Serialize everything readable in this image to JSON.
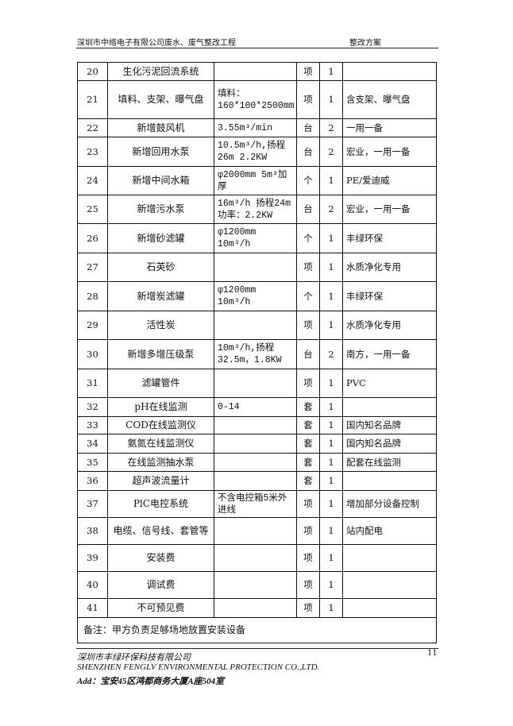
{
  "header": {
    "left": "深圳市中络电子有限公司废水、废气整改工程",
    "right": "整改方案"
  },
  "rows": [
    {
      "no": "20",
      "name": "生化污泥回流系统",
      "spec": "",
      "unit": "项",
      "qty": "1",
      "remark": ""
    },
    {
      "no": "21",
      "name": "填料、支架、曝气盘",
      "spec": "填料：160*100*2500mm",
      "unit": "项",
      "qty": "1",
      "remark": "含支架、曝气盘"
    },
    {
      "no": "22",
      "name": "新增鼓风机",
      "spec": "3.55m³/min",
      "unit": "台",
      "qty": "2",
      "remark": "一用一备"
    },
    {
      "no": "23",
      "name": "新增回用水泵",
      "spec": "10.5m³/h,扬程26m  2.2KW",
      "unit": "台",
      "qty": "2",
      "remark": "宏业，一用一备"
    },
    {
      "no": "24",
      "name": "新增中间水箱",
      "spec": "φ2000mm 5m³加厚",
      "unit": "个",
      "qty": "1",
      "remark": "PE/爱迪威"
    },
    {
      "no": "25",
      "name": "新增污水泵",
      "spec": "16m³/h  扬程24m功率：2.2KW",
      "unit": "台",
      "qty": "2",
      "remark": "宏业，一用一备"
    },
    {
      "no": "26",
      "name": "新增砂滤罐",
      "spec": "φ1200mm   10m³/h",
      "unit": "个",
      "qty": "1",
      "remark": "丰绿环保"
    },
    {
      "no": "27",
      "name": "石英砂",
      "spec": "",
      "unit": "项",
      "qty": "1",
      "remark": "水质净化专用"
    },
    {
      "no": "28",
      "name": "新增炭滤罐",
      "spec": "φ1200mm   10m³/h",
      "unit": "个",
      "qty": "1",
      "remark": "丰绿环保"
    },
    {
      "no": "29",
      "name": "活性炭",
      "spec": "",
      "unit": "项",
      "qty": "1",
      "remark": "水质净化专用"
    },
    {
      "no": "30",
      "name": "新增多增压级泵",
      "spec": "10m³/h,扬程32.5m，1.8KW",
      "unit": "台",
      "qty": "2",
      "remark": "南方，一用一备"
    },
    {
      "no": "31",
      "name": "滤罐管件",
      "spec": "",
      "unit": "项",
      "qty": "1",
      "remark": "PVC"
    },
    {
      "no": "32",
      "name": "pH在线监测",
      "spec": "0-14",
      "unit": "套",
      "qty": "1",
      "remark": ""
    },
    {
      "no": "33",
      "name": "COD在线监测仪",
      "spec": "",
      "unit": "套",
      "qty": "1",
      "remark": "国内知名品牌"
    },
    {
      "no": "34",
      "name": "氨氮在线监测仪",
      "spec": "",
      "unit": "套",
      "qty": "1",
      "remark": "国内知名品牌"
    },
    {
      "no": "35",
      "name": "在线监测抽水泵",
      "spec": "",
      "unit": "套",
      "qty": "1",
      "remark": "配套在线监测"
    },
    {
      "no": "36",
      "name": "超声波流量计",
      "spec": "",
      "unit": "套",
      "qty": "1",
      "remark": ""
    },
    {
      "no": "37",
      "name": "PlC电控系统",
      "spec": "不含电控箱5米外进线",
      "unit": "项",
      "qty": "1",
      "remark": "增加部分设备控制"
    },
    {
      "no": "38",
      "name": "电缆、信号线、套管等",
      "spec": "",
      "unit": "项",
      "qty": "1",
      "remark": "站内配电"
    },
    {
      "no": "39",
      "name": "安装费",
      "spec": "",
      "unit": "项",
      "qty": "1",
      "remark": ""
    },
    {
      "no": "40",
      "name": "调试费",
      "spec": "",
      "unit": "项",
      "qty": "1",
      "remark": ""
    },
    {
      "no": "41",
      "name": "不可预见费",
      "spec": "",
      "unit": "项",
      "qty": "1",
      "remark": ""
    }
  ],
  "note": "备注：甲方负责足够场地放置安装设备",
  "footer": {
    "company_cn": "深圳市丰绿环保科技有限公司",
    "company_en": "SHENZHEN FENGLV ENVIRONMENTAL PROTECTION CO.,LTD.",
    "address": "Add：宝安45区鸿都商务大厦A座504室",
    "page_number": "11"
  }
}
